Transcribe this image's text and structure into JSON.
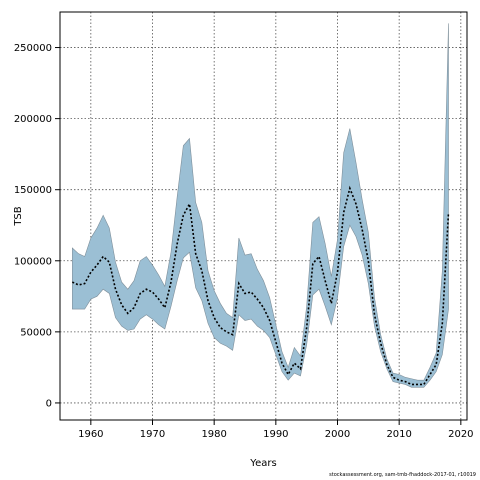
{
  "chart_data": {
    "type": "area",
    "xlabel": "Years",
    "ylabel": "TSB",
    "xlim": [
      1955,
      2021
    ],
    "ylim": [
      -12000,
      275000
    ],
    "xticks": [
      1960,
      1970,
      1980,
      1990,
      2000,
      2010,
      2020
    ],
    "yticks": [
      0,
      50000,
      100000,
      150000,
      200000,
      250000
    ],
    "grid": true,
    "colors": {
      "band": "#9bbfd4",
      "band_edge": "#7f8f9a",
      "line": "#000000"
    },
    "x": [
      1957,
      1958,
      1959,
      1960,
      1961,
      1962,
      1963,
      1964,
      1965,
      1966,
      1967,
      1968,
      1969,
      1970,
      1971,
      1972,
      1973,
      1974,
      1975,
      1976,
      1977,
      1978,
      1979,
      1980,
      1981,
      1982,
      1983,
      1984,
      1985,
      1986,
      1987,
      1988,
      1989,
      1990,
      1991,
      1992,
      1993,
      1994,
      1995,
      1996,
      1997,
      1998,
      1999,
      2000,
      2001,
      2002,
      2003,
      2004,
      2005,
      2006,
      2007,
      2008,
      2009,
      2010,
      2011,
      2012,
      2013,
      2014,
      2015,
      2016,
      2017,
      2018
    ],
    "series": [
      {
        "values": [
          85000,
          83000,
          84000,
          92000,
          97000,
          103000,
          99000,
          80000,
          69000,
          63000,
          67000,
          77000,
          80000,
          78000,
          73000,
          67000,
          85000,
          112000,
          132000,
          140000,
          105000,
          93000,
          72000,
          60000,
          53000,
          50000,
          48000,
          84000,
          77000,
          78000,
          73000,
          67000,
          58000,
          43000,
          28000,
          20000,
          28000,
          24000,
          53000,
          98000,
          103000,
          86000,
          70000,
          92000,
          134000,
          151000,
          140000,
          122000,
          100000,
          62000,
          42000,
          27000,
          18000,
          16000,
          15000,
          13000,
          13000,
          13000,
          20000,
          27000,
          56000,
          134000
        ]
      },
      {
        "name": "lower",
        "values": [
          66000,
          66000,
          66000,
          73000,
          75000,
          80000,
          77000,
          60000,
          54000,
          51000,
          52000,
          59000,
          62000,
          59000,
          55000,
          52000,
          68000,
          86000,
          102000,
          106000,
          81000,
          72000,
          56000,
          46000,
          42000,
          40000,
          37000,
          62000,
          58000,
          59000,
          54000,
          51000,
          46000,
          34000,
          22000,
          16000,
          21000,
          19000,
          41000,
          76000,
          80000,
          68000,
          55000,
          74000,
          110000,
          125000,
          117000,
          104000,
          84000,
          54000,
          36000,
          24000,
          15000,
          14000,
          13000,
          11000,
          11000,
          11000,
          16000,
          22000,
          34000,
          66000
        ]
      },
      {
        "name": "upper",
        "values": [
          109000,
          105000,
          103000,
          116000,
          123000,
          132000,
          123000,
          99000,
          85000,
          80000,
          86000,
          100000,
          103000,
          97000,
          90000,
          82000,
          106000,
          145000,
          181000,
          186000,
          141000,
          127000,
          93000,
          79000,
          70000,
          63000,
          60000,
          116000,
          104000,
          105000,
          94000,
          86000,
          74000,
          55000,
          36000,
          25000,
          39000,
          33000,
          68000,
          127000,
          131000,
          112000,
          89000,
          115000,
          176000,
          193000,
          169000,
          143000,
          120000,
          74000,
          48000,
          31000,
          21000,
          20000,
          18000,
          17000,
          16000,
          16000,
          25000,
          35000,
          93000,
          267000
        ]
      }
    ]
  },
  "footer": {
    "credit": "stockassessment.org, sam-tmb-fhaddock-2017-01, r10019"
  }
}
